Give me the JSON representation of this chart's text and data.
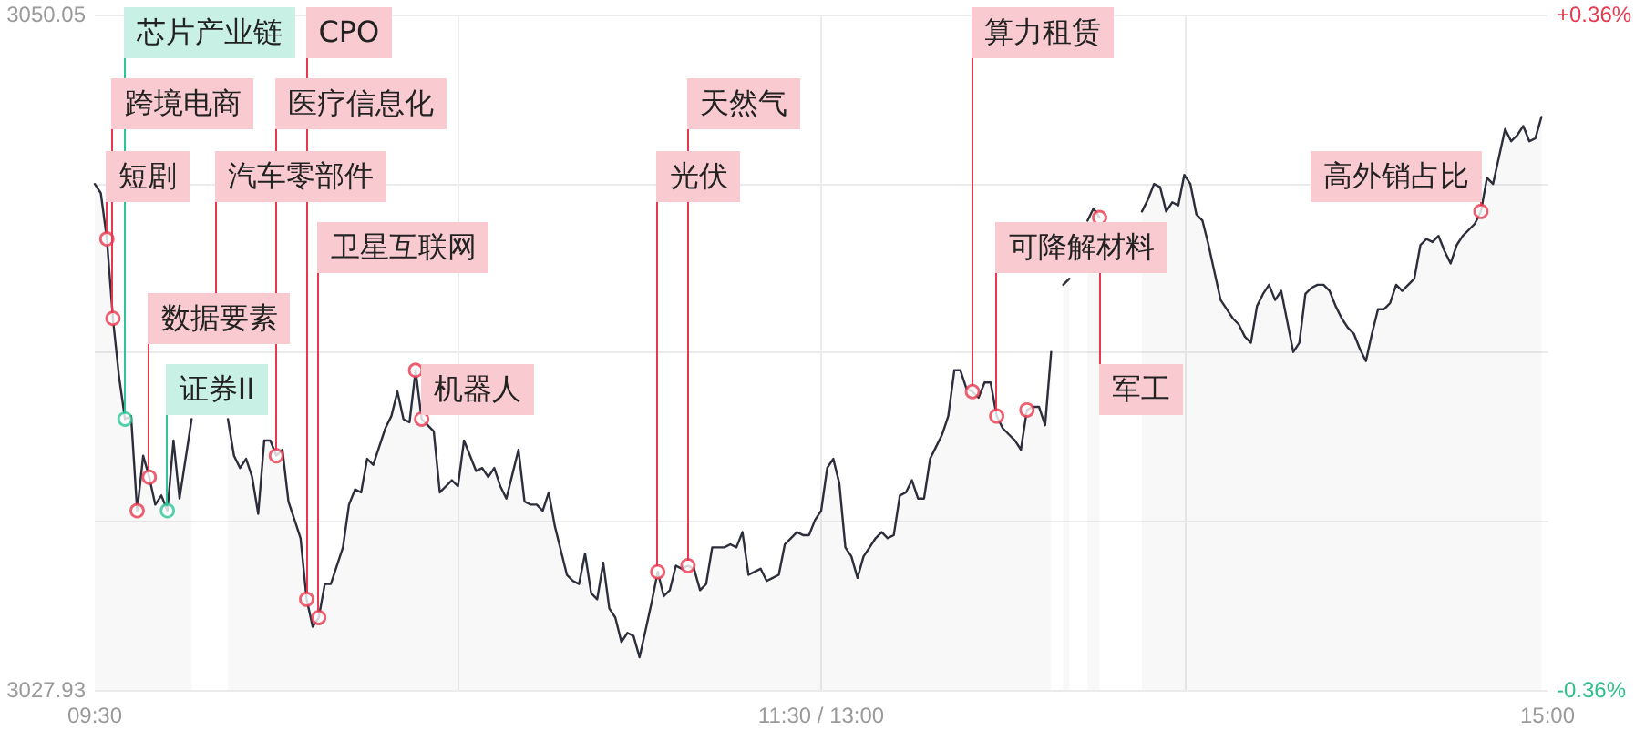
{
  "chart_data": {
    "type": "area",
    "categories": [
      "09:30",
      null,
      null,
      null,
      null,
      null,
      null,
      null,
      null,
      null,
      null,
      null,
      null,
      null,
      null,
      null,
      null,
      null,
      null,
      null,
      null,
      null,
      null,
      null,
      null,
      null,
      null,
      null,
      null,
      null,
      null,
      null,
      null,
      null,
      null,
      null,
      null,
      null,
      null,
      null,
      null,
      null,
      null,
      null,
      null,
      null,
      null,
      null,
      null,
      null,
      null,
      null,
      null,
      null,
      null,
      null,
      null,
      null,
      null,
      null,
      null,
      null,
      null,
      null,
      null,
      null,
      null,
      null,
      null,
      null,
      null,
      null,
      null,
      null,
      null,
      null,
      null,
      null,
      null,
      null,
      null,
      null,
      null,
      null,
      null,
      null,
      null,
      null,
      null,
      null,
      null,
      null,
      null,
      null,
      null,
      null,
      null,
      null,
      null,
      null,
      null,
      null,
      null,
      null,
      null,
      null,
      null,
      null,
      null,
      null,
      null,
      null,
      null,
      null,
      null,
      null,
      null,
      null,
      null,
      null,
      "11:30 / 13:00",
      null,
      null,
      null,
      null,
      null,
      null,
      null,
      null,
      null,
      null,
      null,
      null,
      null,
      null,
      null,
      null,
      null,
      null,
      null,
      null,
      null,
      null,
      null,
      null,
      null,
      null,
      null,
      null,
      null,
      null,
      null,
      null,
      null,
      null,
      null,
      null,
      null,
      null,
      null,
      null,
      null,
      null,
      null,
      null,
      null,
      null,
      null,
      null,
      null,
      null,
      null,
      null,
      null,
      null,
      null,
      null,
      null,
      null,
      null,
      null,
      null,
      null,
      null,
      null,
      null,
      null,
      null,
      null,
      null,
      null,
      null,
      null,
      null,
      null,
      null,
      null,
      null,
      null,
      null,
      null,
      null,
      null,
      null,
      null,
      null,
      null,
      null,
      null,
      null,
      null,
      null,
      null,
      null,
      null,
      null,
      null,
      null,
      null,
      null,
      null,
      null,
      null,
      null,
      null,
      null,
      null,
      null,
      null,
      null,
      null,
      null,
      null,
      null,
      null,
      null,
      null,
      null,
      null,
      null,
      "15:00"
    ],
    "ylim": [
      3027.93,
      3050.05
    ],
    "yticks": [
      3027.93,
      {
        "value": 3033.46,
        "label": null
      },
      {
        "value": 3038.99,
        "label": null
      },
      {
        "value": 3044.52,
        "label": null
      },
      3050.05
    ],
    "y2lim": [
      -0.36,
      0.36
    ],
    "y2ticks": [
      {
        "value": -0.36,
        "label": "-0.36%"
      },
      {
        "value": 0.36,
        "label": "+0.36%"
      }
    ],
    "grid": true,
    "series": [
      {
        "color": "#2d2e3c",
        "values": [
          3044.5,
          3044.2,
          3042.7,
          3040.1,
          3038.2,
          3036.8,
          3036.9,
          3033.8,
          3035.6,
          3034.9,
          3034.0,
          3034.3,
          3033.8,
          3036.1,
          3034.2,
          3035.5,
          3036.8,
          null,
          null,
          null,
          null,
          null,
          3036.8,
          3035.6,
          3035.2,
          3035.5,
          3034.9,
          3033.7,
          3036.1,
          3036.1,
          3035.6,
          3035.8,
          3034.1,
          3033.5,
          3032.9,
          3030.9,
          3030.0,
          3030.3,
          3031.4,
          3031.4,
          3032.0,
          3032.6,
          3034.0,
          3034.5,
          3034.4,
          3035.5,
          3035.3,
          3035.9,
          3036.5,
          3036.9,
          3037.7,
          3036.8,
          3036.7,
          3038.4,
          3036.8,
          3036.6,
          3036.4,
          3034.4,
          3034.6,
          3034.8,
          3034.6,
          3036.1,
          3035.6,
          3035.1,
          3035.2,
          3034.9,
          3035.2,
          3034.6,
          3034.2,
          3035.0,
          3035.8,
          3034.1,
          3034.0,
          3034.0,
          3033.8,
          3034.4,
          3033.3,
          3032.5,
          3031.7,
          3031.5,
          3031.4,
          3032.4,
          3031.1,
          3030.9,
          3032.1,
          3030.6,
          3030.3,
          3029.5,
          3029.8,
          3029.7,
          3029.0,
          3029.9,
          3030.8,
          3031.8,
          3031.0,
          3031.2,
          3032.0,
          3031.9,
          3032.0,
          3031.9,
          3031.2,
          3031.4,
          3032.6,
          3032.6,
          3032.6,
          3032.7,
          3032.6,
          3033.1,
          3031.7,
          3031.8,
          3031.9,
          3031.5,
          3031.6,
          3031.7,
          3032.7,
          3032.9,
          3033.1,
          3033.0,
          3033.0,
          3033.5,
          3033.8,
          3035.2,
          3035.5,
          3034.7,
          3032.6,
          3032.3,
          3031.6,
          3032.3,
          3032.6,
          3032.9,
          3033.1,
          3032.9,
          3033.0,
          3034.3,
          3034.4,
          3034.8,
          3034.2,
          3034.2,
          3035.5,
          3035.9,
          3036.3,
          3036.9,
          3038.4,
          3038.4,
          3037.8,
          3037.7,
          3037.5,
          3038.0,
          3038.0,
          3036.9,
          3036.5,
          3036.3,
          3036.1,
          3035.8,
          3037.1,
          3037.2,
          3037.2,
          3036.6,
          3039.0,
          null,
          3041.2,
          3041.4,
          null,
          null,
          3043.3,
          3043.7,
          3043.4,
          null,
          null,
          null,
          null,
          null,
          null,
          3043.6,
          3044.0,
          3044.5,
          3044.4,
          3043.6,
          3043.9,
          3043.8,
          3044.8,
          3044.5,
          3043.5,
          3043.3,
          3042.5,
          3041.6,
          3040.7,
          3040.4,
          3040.1,
          3039.9,
          3039.5,
          3039.3,
          3040.5,
          3040.9,
          3041.2,
          3040.7,
          3041.0,
          3040.0,
          3039.0,
          3039.3,
          3040.9,
          3041.1,
          3041.2,
          3041.2,
          3041.0,
          3040.5,
          3040.1,
          3039.8,
          3039.6,
          3039.1,
          3038.7,
          3039.6,
          3040.4,
          3040.4,
          3040.6,
          3041.2,
          3041.0,
          3041.2,
          3041.4,
          3042.5,
          3042.7,
          3042.6,
          3042.8,
          3042.3,
          3041.9,
          3042.5,
          3042.8,
          3043.0,
          3043.2,
          3043.6,
          3044.7,
          3044.5,
          3045.4,
          3046.3,
          3045.9,
          3046.1,
          3046.4,
          3045.9,
          3046.0,
          3046.7,
          null
        ]
      },
      {
        "type": "scatter",
        "marker": "circle",
        "values": [
          null,
          null,
          3042.7,
          3040.1,
          null,
          3036.8,
          null,
          3033.8,
          null,
          3034.9,
          null,
          null,
          3033.8,
          null,
          null,
          null,
          null,
          null,
          null,
          null,
          null,
          null,
          null,
          null,
          null,
          null,
          null,
          null,
          null,
          null,
          3035.6,
          null,
          null,
          null,
          null,
          3030.9,
          null,
          3030.3,
          null,
          null,
          null,
          null,
          null,
          null,
          null,
          null,
          null,
          null,
          null,
          null,
          null,
          null,
          null,
          3038.4,
          3036.8,
          null,
          null,
          null,
          null,
          null,
          null,
          null,
          null,
          null,
          null,
          null,
          null,
          null,
          null,
          null,
          null,
          null,
          null,
          null,
          null,
          null,
          null,
          null,
          null,
          null,
          null,
          null,
          null,
          null,
          null,
          null,
          null,
          null,
          null,
          null,
          null,
          null,
          null,
          3031.8,
          null,
          null,
          null,
          null,
          3032.0,
          null,
          null,
          null,
          null,
          null,
          null,
          null,
          null,
          null,
          null,
          null,
          null,
          null,
          null,
          null,
          null,
          null,
          null,
          null,
          null,
          null,
          null,
          null,
          null,
          null,
          null,
          null,
          null,
          null,
          null,
          null,
          null,
          null,
          null,
          null,
          null,
          null,
          null,
          null,
          null,
          null,
          null,
          null,
          null,
          null,
          null,
          3037.7,
          null,
          null,
          null,
          3036.9,
          null,
          null,
          null,
          null,
          3037.1,
          null,
          null,
          null,
          null,
          null,
          null,
          null,
          null,
          null,
          null,
          null,
          3043.4,
          null,
          null,
          null,
          null,
          null,
          null,
          null,
          null,
          null,
          null,
          null,
          null,
          null,
          null,
          null,
          null,
          null,
          null,
          null,
          null,
          null,
          null,
          null,
          null,
          null,
          null,
          null,
          null,
          null,
          null,
          null,
          null,
          null,
          null,
          null,
          null,
          null,
          null,
          null,
          null,
          null,
          null,
          null,
          null,
          null,
          null,
          null,
          null,
          null,
          null,
          null,
          null,
          null,
          null,
          null,
          null,
          null,
          null,
          null,
          null,
          null,
          null,
          3043.6,
          null,
          null,
          null,
          null,
          null,
          null,
          null,
          null,
          null,
          null,
          null
        ],
        "colors": [
          null,
          null,
          "#e8384f",
          "#e8384f",
          null,
          "#2fc497",
          null,
          "#e8384f",
          null,
          "#e8384f",
          null,
          null,
          "#2fc497",
          null,
          null,
          null,
          null,
          null,
          null,
          null,
          "#e8384f",
          null,
          null,
          null,
          null,
          null,
          null,
          null,
          null,
          null,
          "#e8384f",
          null,
          null,
          null,
          null,
          "#e8384f",
          null,
          "#e8384f",
          null,
          null,
          null,
          null,
          null,
          null,
          null,
          null,
          null,
          null,
          null,
          null,
          null,
          null,
          null,
          "#e8384f",
          "#e8384f",
          null,
          null,
          null,
          null,
          null,
          null,
          null,
          null,
          null,
          null,
          null,
          null,
          null,
          null,
          null,
          null,
          null,
          null,
          null,
          null,
          null,
          null,
          null,
          null,
          null,
          null,
          null,
          null,
          null,
          null,
          null,
          null,
          null,
          null,
          null,
          null,
          null,
          null,
          "#e8384f",
          null,
          null,
          null,
          null,
          "#e8384f",
          null,
          null,
          null,
          null,
          null,
          null,
          null,
          null,
          null,
          null,
          null,
          null,
          null,
          null,
          null,
          null,
          null,
          null,
          null,
          null,
          null,
          null,
          null,
          null,
          null,
          null,
          null,
          null,
          null,
          null,
          null,
          null,
          null,
          null,
          null,
          null,
          null,
          null,
          null,
          null,
          null,
          null,
          null,
          null,
          null,
          null,
          "#e8384f",
          null,
          null,
          null,
          "#e8384f",
          null,
          null,
          null,
          null,
          "#e8384f",
          null,
          null,
          null,
          null,
          null,
          null,
          null,
          null,
          null,
          null,
          null,
          "#e8384f",
          null,
          null,
          null,
          null,
          null,
          null,
          null,
          null,
          null,
          null,
          null,
          null,
          null,
          null,
          null,
          null,
          null,
          null,
          null,
          null,
          null,
          null,
          null,
          null,
          null,
          null,
          null,
          null,
          null,
          null,
          null,
          null,
          null,
          null,
          null,
          null,
          null,
          null,
          null,
          null,
          null,
          null,
          null,
          null,
          null,
          null,
          null,
          null,
          null,
          null,
          null,
          null,
          null,
          null,
          null,
          null,
          null,
          null,
          null,
          null,
          null,
          null,
          "#e8384f",
          null,
          null,
          null,
          null,
          null,
          null,
          null,
          null,
          null,
          null,
          null
        ]
      }
    ],
    "annotations": [
      "短剧",
      "跨境电商",
      "芯片产业链",
      null,
      "数据要素",
      "证券II",
      "汽车零部件",
      "医疗信息化",
      "CPO",
      "卫星互联网",
      null,
      "机器人",
      "光伏",
      "天然气",
      "算力租赁",
      "可降解材料",
      null,
      "军工",
      "高外销占比"
    ]
  }
}
